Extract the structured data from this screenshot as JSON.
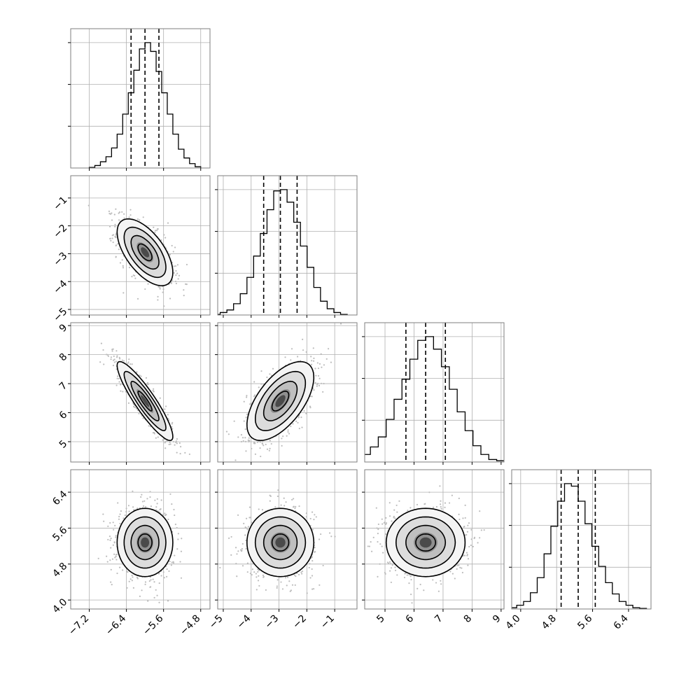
{
  "chart_data": {
    "type": "corner",
    "title": "",
    "grid": true,
    "parameters": [
      {
        "index": 0,
        "range": [
          -7.6,
          -4.6
        ],
        "ticks": [
          "−7.2",
          "−6.4",
          "−5.6",
          "−4.8"
        ],
        "tick_values": [
          -7.2,
          -6.4,
          -5.6,
          -4.8
        ],
        "mean": -6.0,
        "sigma": 0.3,
        "quantiles": [
          -6.3,
          -6.0,
          -5.7
        ]
      },
      {
        "index": 1,
        "range": [
          -5.2,
          -0.2
        ],
        "ticks": [
          "−5",
          "−4",
          "−3",
          "−2",
          "−1"
        ],
        "tick_values": [
          -5,
          -4,
          -3,
          -2,
          -1
        ],
        "mean": -2.95,
        "sigma": 0.6,
        "quantiles": [
          -3.55,
          -2.95,
          -2.35
        ]
      },
      {
        "index": 2,
        "range": [
          4.3,
          9.1
        ],
        "ticks": [
          "5",
          "6",
          "7",
          "8",
          "9"
        ],
        "tick_values": [
          5,
          6,
          7,
          8,
          9
        ],
        "mean": 6.4,
        "sigma": 0.68,
        "quantiles": [
          5.72,
          6.4,
          7.08
        ]
      },
      {
        "index": 3,
        "range": [
          3.8,
          6.9
        ],
        "ticks": [
          "4.0",
          "4.8",
          "5.6",
          "6.4"
        ],
        "tick_values": [
          4.0,
          4.8,
          5.6,
          6.4
        ],
        "mean": 5.28,
        "sigma": 0.38,
        "quantiles": [
          4.9,
          5.28,
          5.66
        ]
      }
    ],
    "correlations": [
      [
        1,
        -0.6,
        -0.9,
        0
      ],
      [
        -0.6,
        1,
        0.6,
        0
      ],
      [
        -0.9,
        0.6,
        1,
        0
      ],
      [
        0,
        0,
        0,
        1
      ]
    ],
    "histograms": [
      {
        "param": 0,
        "counts": [
          0.005,
          0.02,
          0.05,
          0.09,
          0.16,
          0.27,
          0.43,
          0.6,
          0.78,
          0.95,
          1.0,
          0.93,
          0.77,
          0.6,
          0.43,
          0.27,
          0.15,
          0.08,
          0.035,
          0.01
        ]
      },
      {
        "param": 1,
        "counts": [
          0.005,
          0.02,
          0.04,
          0.09,
          0.17,
          0.3,
          0.47,
          0.65,
          0.84,
          0.99,
          1.0,
          0.9,
          0.74,
          0.55,
          0.38,
          0.22,
          0.11,
          0.05,
          0.02,
          0.005
        ]
      },
      {
        "param": 2,
        "counts": [
          0.01,
          0.03,
          0.06,
          0.12,
          0.2,
          0.34,
          0.5,
          0.66,
          0.82,
          0.97,
          1.0,
          0.9,
          0.76,
          0.58,
          0.4,
          0.25,
          0.13,
          0.06,
          0.02,
          0.01
        ]
      },
      {
        "param": 3,
        "counts": [
          0.01,
          0.03,
          0.06,
          0.13,
          0.25,
          0.44,
          0.66,
          0.86,
          1.0,
          0.98,
          0.86,
          0.68,
          0.5,
          0.34,
          0.21,
          0.12,
          0.06,
          0.03,
          0.01,
          0.005
        ]
      }
    ],
    "contour_levels_sigma": [
      0.5,
      1.0,
      1.5,
      2.0
    ],
    "colors": {
      "line": "#000000",
      "points": "#bdbdbd",
      "grid": "#b0b0b0",
      "frame": "#7f7f7f"
    }
  }
}
